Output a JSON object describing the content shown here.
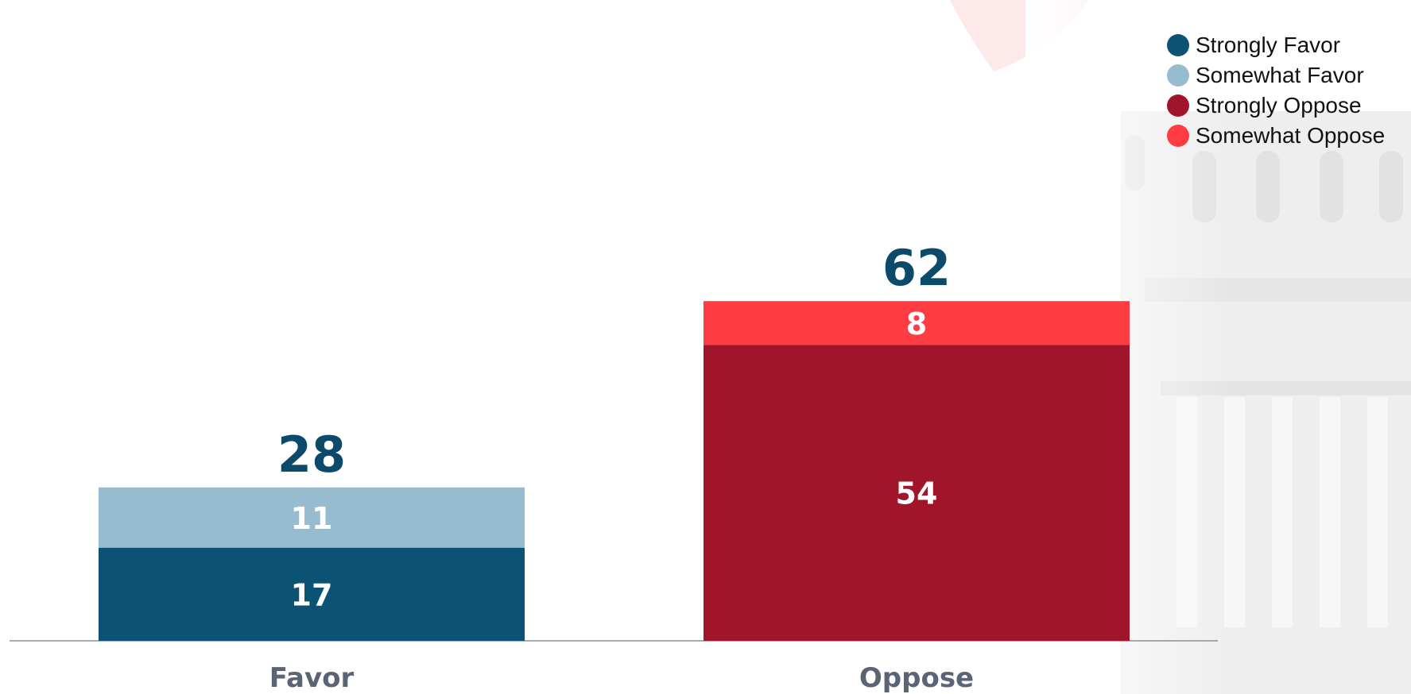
{
  "chart_data": {
    "type": "bar",
    "stacked": true,
    "categories": [
      "Favor",
      "Oppose"
    ],
    "totals": [
      28,
      62
    ],
    "series": [
      {
        "name": "Strongly Favor",
        "values": [
          17,
          null
        ],
        "color": "#0b5274"
      },
      {
        "name": "Somewhat Favor",
        "values": [
          11,
          null
        ],
        "color": "#98bccf"
      },
      {
        "name": "Strongly Oppose",
        "values": [
          null,
          54
        ],
        "color": "#a1152a"
      },
      {
        "name": "Somewhat Oppose",
        "values": [
          null,
          8
        ],
        "color": "#ff3c41"
      }
    ],
    "legend_position": "top-right",
    "grid": false,
    "ylim": [
      0,
      70
    ],
    "colors": {
      "category_label": "#5a6475",
      "favor_total": "#0b4a6a",
      "oppose_total": "#0b4a6a",
      "segment_label": "#ffffff",
      "axis": "#8a9099"
    }
  }
}
